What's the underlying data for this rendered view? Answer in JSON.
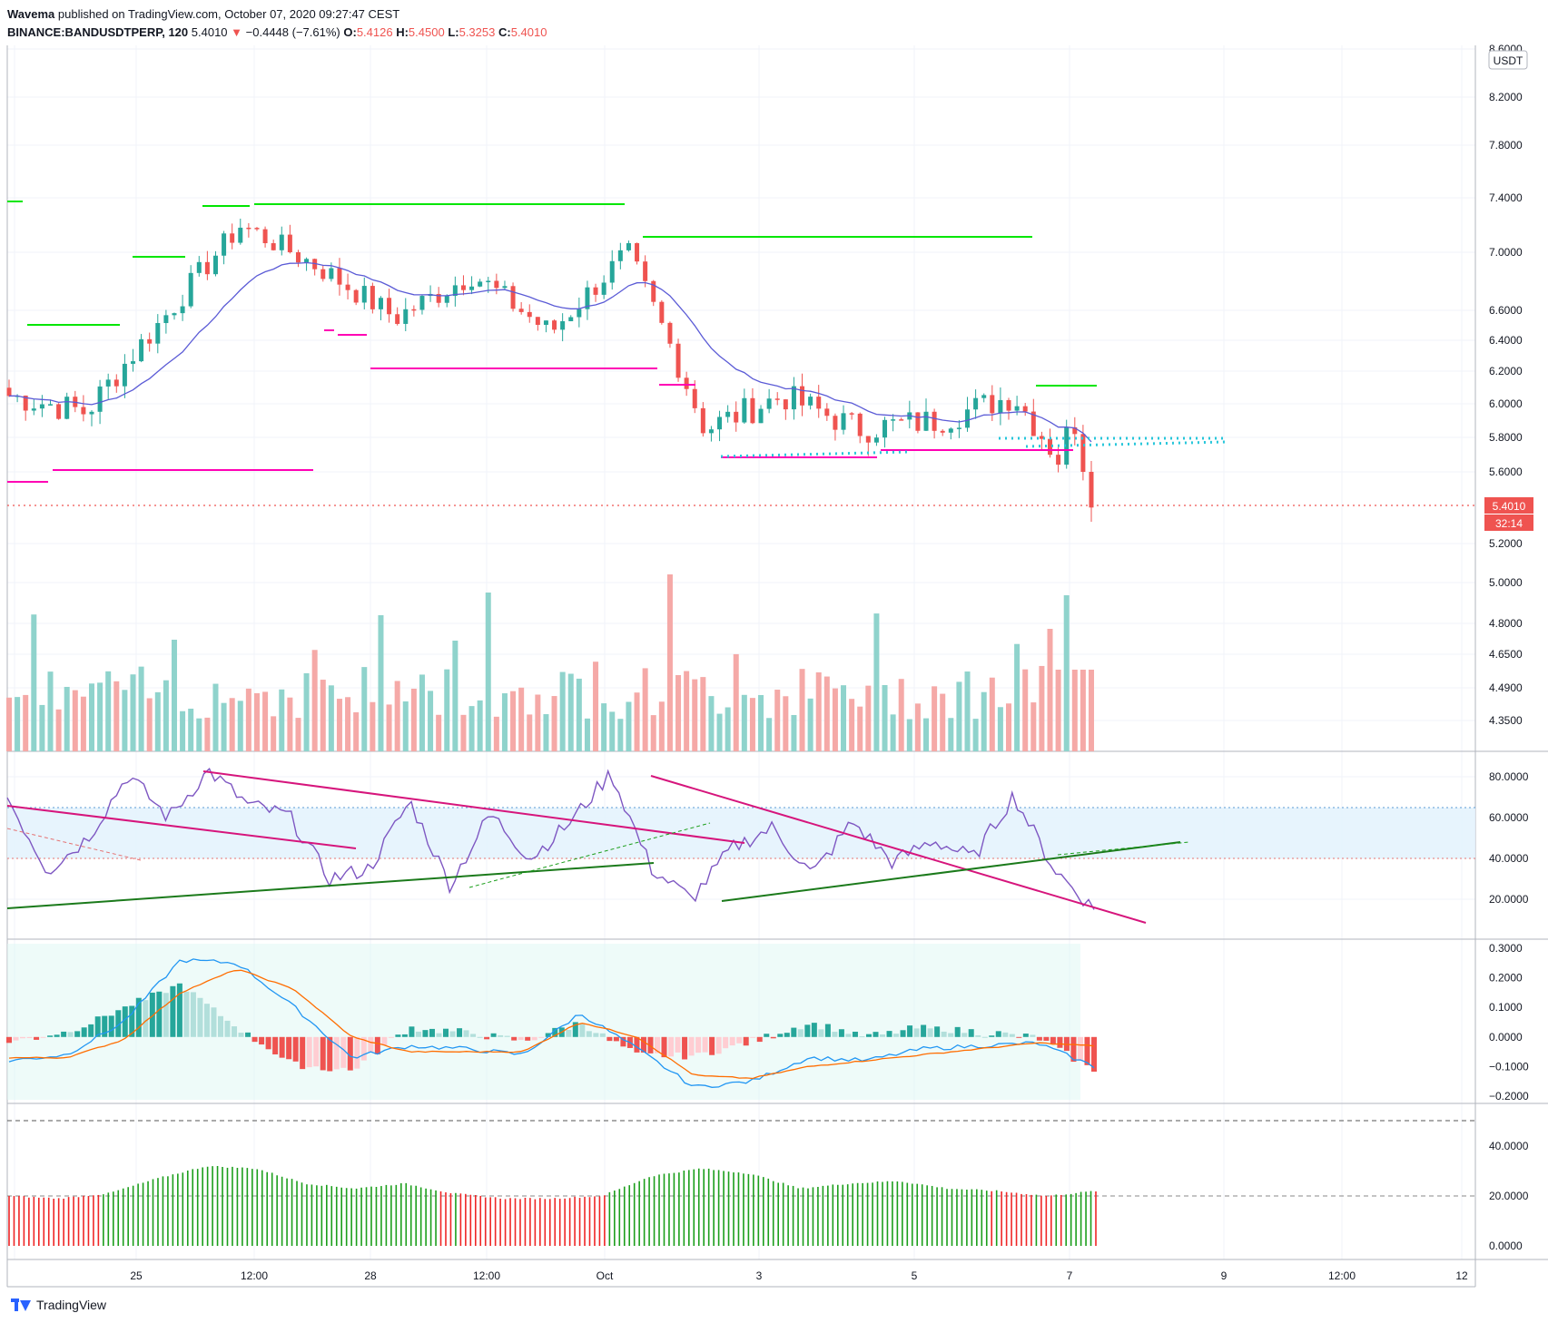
{
  "header": {
    "publisher": "Wavema",
    "published_text": "published on TradingView.com, October 07, 2020 09:27:47 CEST",
    "symbol": "BINANCE:BANDUSDTPERP, 120",
    "last": "5.4010",
    "arrow": "▼",
    "change": "−0.4448 (−7.61%)",
    "o_label": "O:",
    "o_value": "5.4126",
    "h_label": "H:",
    "h_value": "5.4500",
    "l_label": "L:",
    "l_value": "5.3253",
    "c_label": "C:",
    "c_value": "5.4010"
  },
  "price_axis": {
    "currency": "USDT",
    "ticks": [
      "8.6000",
      "8.2000",
      "7.8000",
      "7.4000",
      "7.0000",
      "6.6000",
      "6.4000",
      "6.2000",
      "6.0000",
      "5.8000",
      "5.6000",
      "5.2000",
      "5.0000",
      "4.8000",
      "4.6500",
      "4.4900",
      "4.3500"
    ],
    "last_price_label": "5.4010",
    "countdown_label": "32:14"
  },
  "rsi_axis": {
    "ticks": [
      "80.0000",
      "60.0000",
      "40.0000",
      "20.0000"
    ]
  },
  "macd_axis": {
    "ticks": [
      "0.3000",
      "0.2000",
      "0.1000",
      "0.0000",
      "−0.1000",
      "−0.2000"
    ]
  },
  "adx_axis": {
    "ticks": [
      "40.0000",
      "20.0000",
      "0.0000"
    ]
  },
  "time_axis": {
    "labels": [
      "25",
      "12:00",
      "28",
      "12:00",
      "Oct",
      "3",
      "5",
      "7",
      "9",
      "12:00",
      "12"
    ]
  },
  "footer": {
    "brand": "TradingView"
  },
  "colors": {
    "up": "#26a69a",
    "down": "#ef5350",
    "resistance": "#00e600",
    "support": "#ff00b4",
    "ma": "#5b5bd6",
    "rsi": "#7e57c2",
    "macd": "#2196f3",
    "signal": "#ff6d00",
    "adx_up": "#1b9e1b",
    "adx_down": "#ef2525"
  },
  "chart_data": [
    {
      "type": "candlestick",
      "title": "BINANCE:BANDUSDTPERP, 120",
      "ylabel": "USDT",
      "ylim": [
        4.3,
        8.6
      ],
      "x_labels": [
        "25",
        "12:00",
        "28",
        "12:00",
        "Oct",
        "3",
        "5",
        "7",
        "9",
        "12:00",
        "12"
      ],
      "approx_close_path": [
        {
          "x": "Sep 23",
          "y": 6.05
        },
        {
          "x": "Sep 24",
          "y": 5.95
        },
        {
          "x": "Sep 25",
          "y": 6.55
        },
        {
          "x": "Sep 26",
          "y": 7.2
        },
        {
          "x": "Sep 27",
          "y": 6.9
        },
        {
          "x": "Sep 28",
          "y": 6.55
        },
        {
          "x": "Sep 29",
          "y": 6.85
        },
        {
          "x": "Sep 30",
          "y": 6.45
        },
        {
          "x": "Oct 1",
          "y": 7.0
        },
        {
          "x": "Oct 2",
          "y": 5.85
        },
        {
          "x": "Oct 3",
          "y": 6.05
        },
        {
          "x": "Oct 4",
          "y": 5.85
        },
        {
          "x": "Oct 5",
          "y": 5.9
        },
        {
          "x": "Oct 6",
          "y": 6.05
        },
        {
          "x": "Oct 7",
          "y": 5.401
        }
      ],
      "last_price": 5.401
    },
    {
      "type": "line",
      "name": "RSI",
      "ylim": [
        10,
        90
      ],
      "band": [
        40,
        65
      ],
      "y_ticks": [
        80,
        60,
        40,
        20
      ],
      "approx_values": [
        70,
        34,
        50,
        81,
        60,
        83,
        66,
        61,
        30,
        35,
        68,
        27,
        62,
        40,
        58,
        82,
        35,
        20,
        45,
        55,
        32,
        58,
        38,
        49,
        40,
        71,
        35,
        15
      ]
    },
    {
      "type": "bar",
      "name": "MACD",
      "ylim": [
        -0.2,
        0.3
      ],
      "y_ticks": [
        0.3,
        0.2,
        0.1,
        0.0,
        -0.1,
        -0.2
      ],
      "approx_macd": [
        -0.08,
        -0.06,
        0.05,
        0.26,
        0.25,
        0.1,
        -0.07,
        -0.03,
        -0.04,
        -0.06,
        0.08,
        -0.04,
        -0.17,
        -0.15,
        -0.07,
        -0.08,
        -0.04,
        -0.03,
        -0.02,
        -0.1
      ],
      "approx_signal": [
        -0.07,
        -0.07,
        -0.01,
        0.15,
        0.23,
        0.16,
        0.0,
        -0.05,
        -0.05,
        -0.05,
        0.05,
        0.0,
        -0.13,
        -0.14,
        -0.1,
        -0.08,
        -0.06,
        -0.04,
        -0.02,
        -0.03
      ]
    },
    {
      "type": "bar",
      "name": "ADX",
      "ylim": [
        0,
        55
      ],
      "y_ticks": [
        40,
        20,
        0
      ],
      "reference_lines": [
        20,
        50
      ],
      "approx_values": [
        20,
        19,
        21,
        27,
        32,
        31,
        25,
        23,
        25,
        21,
        19,
        19,
        20,
        28,
        31,
        29,
        23,
        25,
        26,
        23,
        22,
        20,
        22
      ]
    }
  ]
}
